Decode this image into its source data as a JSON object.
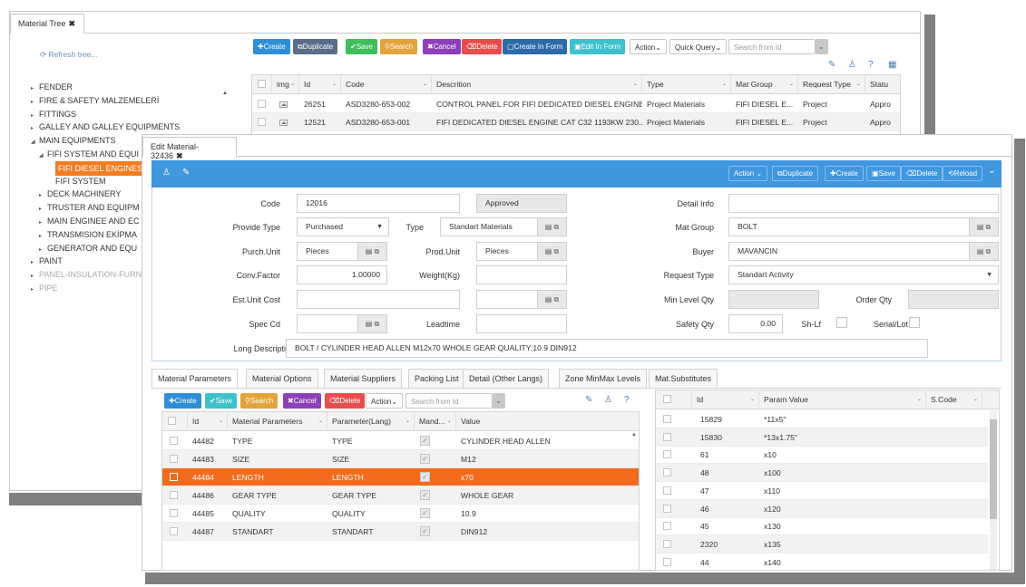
{
  "tree_window": {
    "tab_label": "Material Tree",
    "refresh": "Refresh tree...",
    "items": [
      {
        "label": "FENDER",
        "caret": "▸",
        "indent": 0,
        "state": "normal"
      },
      {
        "label": "FIRE & SAFETY MALZEMELERİ",
        "caret": "▸",
        "indent": 0,
        "state": "normal"
      },
      {
        "label": "FITTINGS",
        "caret": "▸",
        "indent": 0,
        "state": "normal"
      },
      {
        "label": "GALLEY AND GALLEY EQUIPMENTS",
        "caret": "▸",
        "indent": 0,
        "state": "normal"
      },
      {
        "label": "MAIN EQUIPMENTS",
        "caret": "◢",
        "indent": 0,
        "state": "normal"
      },
      {
        "label": "FIFI SYSTEM AND EQUI",
        "caret": "◢",
        "indent": 1,
        "state": "normal"
      },
      {
        "label": "FIFI DIESEL ENGINES",
        "caret": "",
        "indent": 2,
        "state": "selected"
      },
      {
        "label": "FIFI SYSTEM",
        "caret": "",
        "indent": 2,
        "state": "normal"
      },
      {
        "label": "DECK MACHINERY",
        "caret": "▸",
        "indent": 1,
        "state": "normal"
      },
      {
        "label": "TRUSTER AND EQUIPM",
        "caret": "▸",
        "indent": 1,
        "state": "normal"
      },
      {
        "label": "MAIN ENGINEE AND EC",
        "caret": "▸",
        "indent": 1,
        "state": "normal"
      },
      {
        "label": "TRANSMISION EKİPMA",
        "caret": "▸",
        "indent": 1,
        "state": "normal"
      },
      {
        "label": "GENERATOR AND EQU",
        "caret": "▸",
        "indent": 1,
        "state": "normal"
      },
      {
        "label": "PAINT",
        "caret": "▸",
        "indent": 0,
        "state": "normal"
      },
      {
        "label": "PANEL-INSULATION-FURN",
        "caret": "▸",
        "indent": 0,
        "state": "dim"
      },
      {
        "label": "PIPE",
        "caret": "▸",
        "indent": 0,
        "state": "dim"
      }
    ]
  },
  "list_toolbar": {
    "create": "Create",
    "duplicate": "Duplicate",
    "save": "Save",
    "search": "Search",
    "cancel": "Cancel",
    "delete": "Delete",
    "create_in_form": "Create In Form",
    "edit_in_form": "Edit In Form",
    "action": "Action",
    "quick_query": "Quick Query",
    "search_placeholder": "Search from Id"
  },
  "list_grid": {
    "headers": [
      "img",
      "Id",
      "Code",
      "Descrition",
      "Type",
      "Mat Group",
      "Request Type",
      "Statu"
    ],
    "rows": [
      {
        "id": "26251",
        "code": "ASD3280-653-002",
        "desc": "CONTROL PANEL FOR FIFI DEDICATED DIESEL ENGINE...",
        "type": "Project Materials",
        "group": "FIFI DIESEL E...",
        "req": "Project",
        "status": "Appro"
      },
      {
        "id": "12521",
        "code": "ASD3280-653-001",
        "desc": "FIFI DEDICATED DIESEL ENGINE CAT C32 1193KW 230...",
        "type": "Project Materials",
        "group": "FIFI DIESEL E...",
        "req": "Project",
        "status": "Appro"
      }
    ]
  },
  "edit_window": {
    "tab_label": "Edit Material-32436",
    "toolbar": {
      "action": "Action",
      "duplicate": "Duplicate",
      "create": "Create",
      "save": "Save",
      "delete": "Delete",
      "reload": "Reload"
    },
    "form": {
      "code_label": "Code",
      "code": "12016",
      "status": "Approved",
      "detail_info_label": "Detail Info",
      "detail_info": "",
      "provide_type_label": "Provide Type",
      "provide_type": "Purchased",
      "type_label": "Type",
      "type": "Standart Materials",
      "mat_group_label": "Mat Group",
      "mat_group": "BOLT",
      "purch_unit_label": "Purch.Unit",
      "purch_unit": "Pieces",
      "prod_unit_label": "Prod.Unit",
      "prod_unit": "Pieces",
      "buyer_label": "Buyer",
      "buyer": "MAVANCIN",
      "conv_factor_label": "Conv.Factor",
      "conv_factor": "1.00000",
      "weight_label": "Weight(Kg)",
      "weight": "",
      "request_type_label": "Request Type",
      "request_type": "Standart Activity",
      "est_unit_cost_label": "Est.Unit Cost",
      "est_unit_cost": "",
      "min_level_label": "Min Level Qty",
      "order_qty_label": "Order Qty",
      "spec_cd_label": "Spec Cd",
      "leadtime_label": "Leadtime",
      "safety_qty_label": "Safety Qty",
      "safety_qty": "0.00",
      "shlf_label": "Sh-Lf",
      "serial_label": "Serial/Lot",
      "long_desc_label": "Long Description",
      "long_desc": "BOLT / CYLINDER HEAD ALLEN M12x70 WHOLE GEAR QUALITY:10.9 DIN912"
    },
    "tabs": [
      "Material Parameters",
      "Material Options",
      "Material Suppliers",
      "Packing List",
      "Detail (Other Langs)",
      "Zone MinMax Levels",
      "Mat.Substitutes"
    ],
    "param_toolbar": {
      "create": "Create",
      "save": "Save",
      "search": "Search",
      "cancel": "Cancel",
      "delete": "Delete",
      "action": "Action",
      "search_placeholder": "Search from Id"
    },
    "param_grid": {
      "headers": [
        "Id",
        "Material Parameters",
        "Parameter(Lang)",
        "Mand...",
        "Value"
      ],
      "rows": [
        {
          "id": "44482",
          "param": "TYPE",
          "lang": "TYPE",
          "value": "CYLINDER HEAD ALLEN"
        },
        {
          "id": "44483",
          "param": "SIZE",
          "lang": "SIZE",
          "value": "M12"
        },
        {
          "id": "44484",
          "param": "LENGTH",
          "lang": "LENGTH",
          "value": "x70"
        },
        {
          "id": "44486",
          "param": "GEAR TYPE",
          "lang": "GEAR TYPE",
          "value": "WHOLE GEAR"
        },
        {
          "id": "44485",
          "param": "QUALITY",
          "lang": "QUALITY",
          "value": "10.9"
        },
        {
          "id": "44487",
          "param": "STANDART",
          "lang": "STANDART",
          "value": "DIN912"
        }
      ]
    },
    "value_grid": {
      "headers": [
        "Id",
        "Param Value",
        "S.Code"
      ],
      "rows": [
        {
          "id": "15829",
          "value": "*11x5\""
        },
        {
          "id": "15830",
          "value": "*13x1.75\""
        },
        {
          "id": "61",
          "value": "x10"
        },
        {
          "id": "48",
          "value": "x100"
        },
        {
          "id": "47",
          "value": "x110"
        },
        {
          "id": "46",
          "value": "x120"
        },
        {
          "id": "45",
          "value": "x130"
        },
        {
          "id": "2320",
          "value": "x135"
        },
        {
          "id": "44",
          "value": "x140"
        }
      ]
    }
  }
}
